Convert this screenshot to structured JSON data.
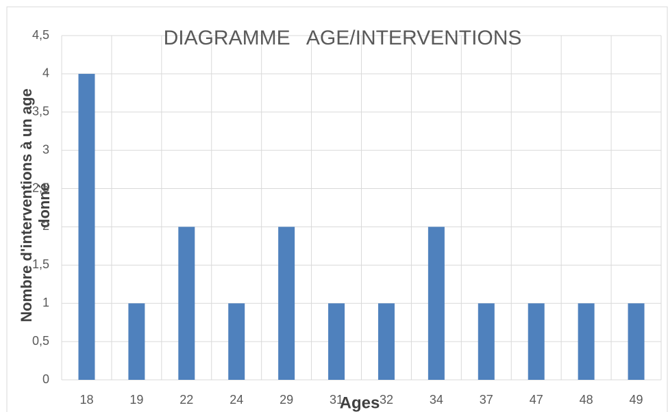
{
  "chart_data": {
    "type": "bar",
    "title": "DIAGRAMME   AGE/INTERVENTIONS",
    "x_label": "Ages",
    "y_label": "Nombre d'interventions à un age donné",
    "categories": [
      "18",
      "19",
      "22",
      "24",
      "29",
      "31",
      "32",
      "34",
      "37",
      "47",
      "48",
      "49"
    ],
    "values": [
      4,
      1,
      2,
      1,
      2,
      1,
      1,
      2,
      1,
      1,
      1,
      1
    ],
    "color": "#4f81bd",
    "ylim": [
      0,
      4.5
    ],
    "yticks": [
      0,
      {
        "value": 0.5,
        "label": "0,5"
      },
      1,
      {
        "value": 1.5,
        "label": "1,5"
      },
      2,
      {
        "value": 2.5,
        "label": "2,5"
      },
      3,
      {
        "value": 3.5,
        "label": "3,5"
      },
      4,
      {
        "value": 4.5,
        "label": "4,5"
      }
    ],
    "grid": true
  }
}
